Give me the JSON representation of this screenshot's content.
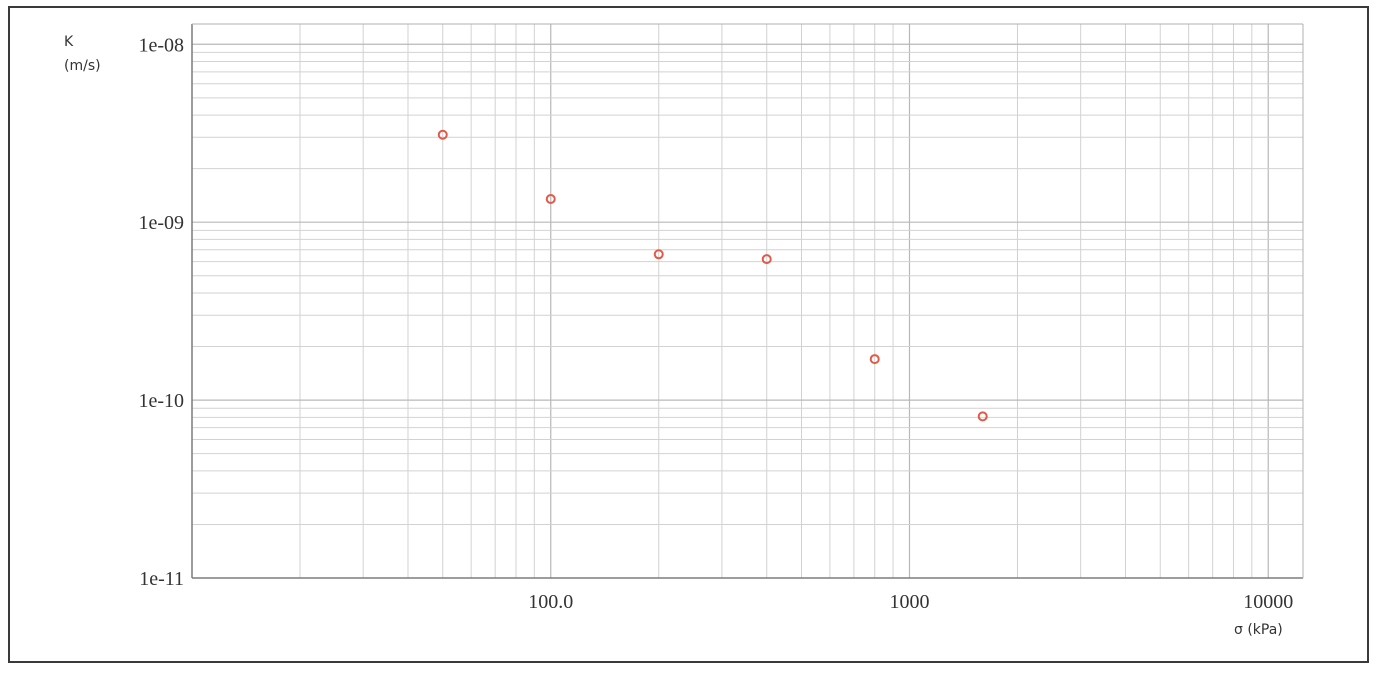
{
  "chart_data": {
    "type": "scatter",
    "title": "",
    "xlabel": "σ (kPa)",
    "ylabel_line1": "K",
    "ylabel_line2": "(m/s)",
    "xscale": "log",
    "yscale": "log",
    "xlim": [
      10,
      12500
    ],
    "ylim": [
      1e-11,
      1.3e-08
    ],
    "grid": true,
    "legend": "none",
    "x_tick_labels": [
      "100.0",
      "1000",
      "10000"
    ],
    "y_tick_labels": [
      "1e-08",
      "1e-09",
      "1e-10",
      "1e-11"
    ],
    "marker_color": "#e05a4a",
    "series": [
      {
        "x": [
          50,
          100,
          200,
          400,
          800,
          1600
        ],
        "y": [
          3.1e-09,
          1.35e-09,
          6.6e-10,
          6.2e-10,
          1.7e-10,
          8.1e-11
        ]
      }
    ]
  }
}
